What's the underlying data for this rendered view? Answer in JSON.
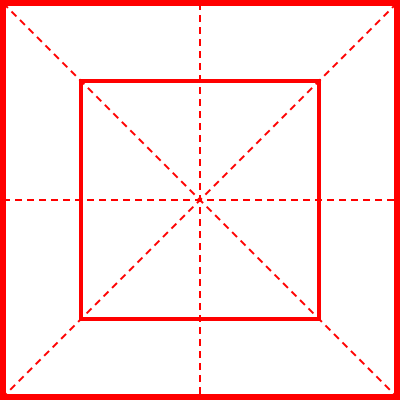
{
  "colors": {
    "line": "#ff0000",
    "background": "#ffffff"
  }
}
